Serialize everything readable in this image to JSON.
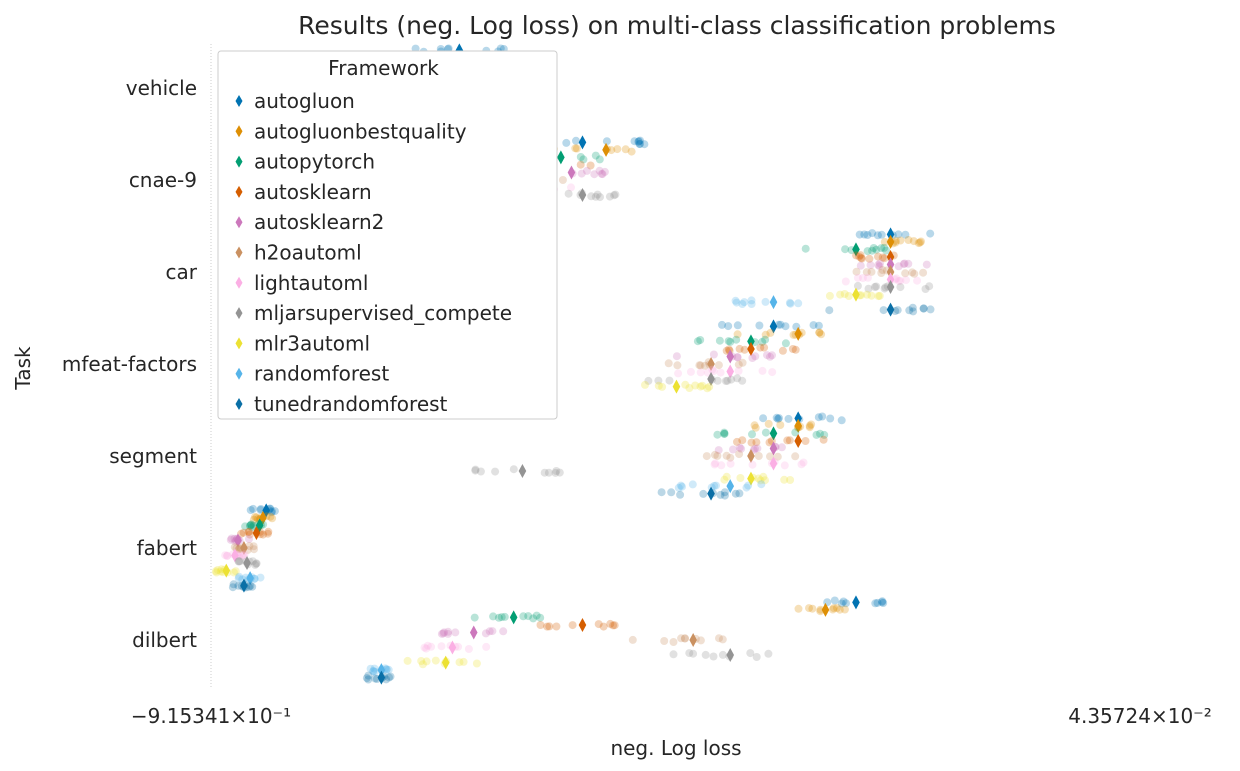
{
  "chart_data": {
    "type": "scatter",
    "title": "Results (neg. Log loss) on  multi-class classification problems",
    "xlabel": "neg. Log loss",
    "ylabel": "Task",
    "x_scale": "symlog",
    "x_ticks": [
      {
        "value": -0.915341,
        "label": "−9.15341×10⁻¹"
      },
      {
        "value": 0.0435724,
        "label": "4.35724×10⁻²"
      }
    ],
    "categories": [
      "vehicle",
      "cnae-9",
      "car",
      "mfeat-factors",
      "segment",
      "fabert",
      "dilbert"
    ],
    "legend": {
      "title": "Framework",
      "placement": "upper-left"
    },
    "series": [
      {
        "name": "autogluon",
        "color": "#0173b2",
        "mean": [
          -0.32,
          -0.18,
          -0.02,
          -0.06,
          -0.05,
          -0.73,
          -0.03
        ],
        "scatter": [
          [
            -0.39,
            -0.31,
            -0.26
          ],
          [
            -0.25,
            -0.16,
            -0.13
          ],
          [
            -0.03,
            -0.02,
            -0.01
          ],
          [
            -0.09,
            -0.06,
            -0.04
          ],
          [
            -0.07,
            -0.05,
            -0.03
          ],
          [
            -0.78,
            -0.73,
            -0.7
          ],
          [
            -0.04,
            -0.03,
            -0.02
          ]
        ]
      },
      {
        "name": "autogluonbestquality",
        "color": "#de8f05",
        "mean": [
          -0.29,
          -0.16,
          -0.02,
          -0.05,
          -0.05,
          -0.74,
          -0.04
        ],
        "scatter": [
          [
            -0.36,
            -0.29,
            -0.25
          ],
          [
            -0.22,
            -0.16,
            -0.14
          ],
          [
            -0.03,
            -0.02,
            -0.01
          ],
          [
            -0.08,
            -0.05,
            -0.04
          ],
          [
            -0.07,
            -0.05,
            -0.04
          ],
          [
            -0.77,
            -0.74,
            -0.71
          ],
          [
            -0.05,
            -0.04,
            -0.03
          ]
        ]
      },
      {
        "name": "autopytorch",
        "color": "#029e73",
        "mean": [
          -0.38,
          -0.2,
          -0.03,
          -0.07,
          -0.06,
          -0.75,
          -0.25
        ],
        "scatter": [
          [
            -0.45,
            -0.38,
            -0.33
          ],
          [
            -0.28,
            -0.2,
            -0.16
          ],
          [
            -0.05,
            -0.03,
            -0.02
          ],
          [
            -0.11,
            -0.07,
            -0.05
          ],
          [
            -0.09,
            -0.06,
            -0.04
          ],
          [
            -0.8,
            -0.75,
            -0.72
          ],
          [
            -0.3,
            -0.25,
            -0.22
          ]
        ]
      },
      {
        "name": "autosklearn",
        "color": "#d55e00",
        "mean": [
          -0.36,
          -0.21,
          -0.02,
          -0.07,
          -0.05,
          -0.76,
          -0.18
        ],
        "scatter": [
          [
            -0.42,
            -0.36,
            -0.31
          ],
          [
            -0.27,
            -0.21,
            -0.17
          ],
          [
            -0.03,
            -0.02,
            -0.01
          ],
          [
            -0.1,
            -0.07,
            -0.05
          ],
          [
            -0.08,
            -0.05,
            -0.04
          ],
          [
            -0.81,
            -0.76,
            -0.72
          ],
          [
            -0.23,
            -0.18,
            -0.15
          ]
        ]
      },
      {
        "name": "autosklearn2",
        "color": "#cc78bc",
        "mean": [
          -0.37,
          -0.19,
          -0.02,
          -0.08,
          -0.06,
          -0.82,
          -0.3
        ],
        "scatter": [
          [
            -0.44,
            -0.37,
            -0.32
          ],
          [
            -0.26,
            -0.19,
            -0.16
          ],
          [
            -0.03,
            -0.02,
            -0.01
          ],
          [
            -0.11,
            -0.08,
            -0.06
          ],
          [
            -0.09,
            -0.06,
            -0.04
          ],
          [
            -0.86,
            -0.82,
            -0.78
          ],
          [
            -0.36,
            -0.3,
            -0.26
          ]
        ]
      },
      {
        "name": "h2oautoml",
        "color": "#ca9161",
        "mean": [
          -0.36,
          -0.24,
          -0.02,
          -0.09,
          -0.07,
          -0.8,
          -0.1
        ],
        "scatter": [
          [
            -0.43,
            -0.36,
            -0.3
          ],
          [
            -0.3,
            -0.24,
            -0.19
          ],
          [
            -0.03,
            -0.02,
            -0.01
          ],
          [
            -0.13,
            -0.09,
            -0.07
          ],
          [
            -0.1,
            -0.07,
            -0.05
          ],
          [
            -0.85,
            -0.8,
            -0.76
          ],
          [
            -0.14,
            -0.1,
            -0.08
          ]
        ]
      },
      {
        "name": "lightautoml",
        "color": "#fbafe4",
        "mean": [
          -0.4,
          -0.22,
          -0.02,
          -0.08,
          -0.06,
          -0.83,
          -0.33
        ],
        "scatter": [
          [
            -0.48,
            -0.4,
            -0.34
          ],
          [
            -0.29,
            -0.22,
            -0.18
          ],
          [
            -0.04,
            -0.02,
            -0.01
          ],
          [
            -0.12,
            -0.08,
            -0.06
          ],
          [
            -0.09,
            -0.06,
            -0.04
          ],
          [
            -0.88,
            -0.83,
            -0.79
          ],
          [
            -0.4,
            -0.33,
            -0.28
          ]
        ]
      },
      {
        "name": "mljarsupervised_compete",
        "color": "#949494",
        "mean": [
          -0.35,
          -0.18,
          -0.02,
          -0.09,
          -0.24,
          -0.79,
          -0.08
        ],
        "scatter": [
          [
            -0.41,
            -0.35,
            -0.3
          ],
          [
            -0.25,
            -0.18,
            -0.15
          ],
          [
            -0.03,
            -0.02,
            -0.01
          ],
          [
            -0.13,
            -0.09,
            -0.07
          ],
          [
            -0.3,
            -0.24,
            -0.2
          ],
          [
            -0.84,
            -0.79,
            -0.75
          ],
          [
            -0.12,
            -0.08,
            -0.06
          ]
        ]
      },
      {
        "name": "mlr3automl",
        "color": "#ece133",
        "mean": [
          -0.58,
          -0.28,
          -0.03,
          -0.11,
          -0.07,
          -0.86,
          -0.34
        ],
        "scatter": [
          [
            -0.66,
            -0.58,
            -0.5
          ],
          [
            -0.34,
            -0.28,
            -0.24
          ],
          [
            -0.04,
            -0.03,
            -0.02
          ],
          [
            -0.15,
            -0.11,
            -0.09
          ],
          [
            -0.1,
            -0.07,
            -0.05
          ],
          [
            -0.9,
            -0.86,
            -0.82
          ],
          [
            -0.41,
            -0.34,
            -0.29
          ]
        ]
      },
      {
        "name": "randomforest",
        "color": "#56b4e9",
        "mean": [
          -0.55,
          -0.32,
          -0.06,
          -0.33,
          -0.08,
          -0.78,
          -0.45
        ],
        "scatter": [
          [
            -0.62,
            -0.55,
            -0.47
          ],
          [
            -0.38,
            -0.32,
            -0.28
          ],
          [
            -0.08,
            -0.06,
            -0.05
          ],
          [
            -0.4,
            -0.33,
            -0.28
          ],
          [
            -0.11,
            -0.08,
            -0.06
          ],
          [
            -0.83,
            -0.78,
            -0.74
          ],
          [
            -0.48,
            -0.45,
            -0.43
          ]
        ]
      },
      {
        "name": "tunedrandomforest",
        "color": "#0a6fa6",
        "mean": [
          -0.53,
          -0.34,
          -0.02,
          -0.3,
          -0.09,
          -0.8,
          -0.45
        ],
        "scatter": [
          [
            -0.61,
            -0.53,
            -0.46
          ],
          [
            -0.39,
            -0.34,
            -0.29
          ],
          [
            -0.04,
            -0.02,
            -0.01
          ],
          [
            -0.37,
            -0.3,
            -0.26
          ],
          [
            -0.12,
            -0.09,
            -0.07
          ],
          [
            -0.84,
            -0.8,
            -0.77
          ],
          [
            -0.48,
            -0.45,
            -0.43
          ]
        ]
      }
    ]
  }
}
